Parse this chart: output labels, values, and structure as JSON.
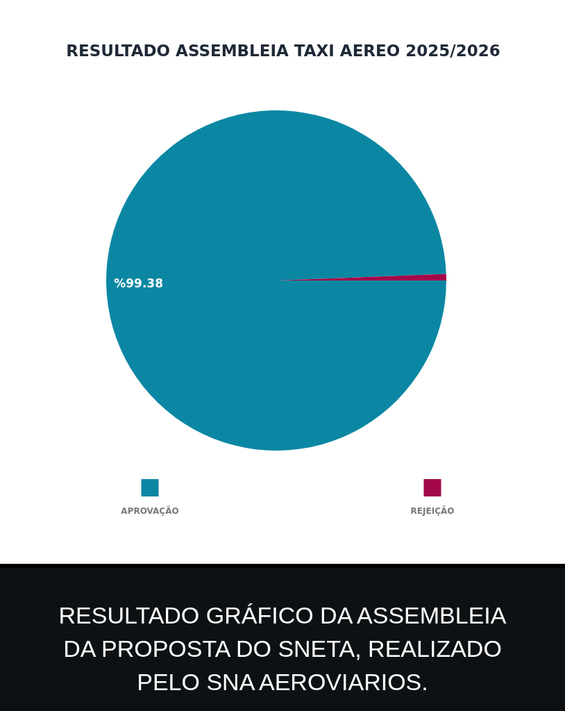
{
  "chart_data": {
    "type": "pie",
    "title": "RESULTADO ASSEMBLEIA TAXI AEREO 2025/2026",
    "categories": [
      "APROVAÇÃO",
      "REJEIÇÃO"
    ],
    "values": [
      99.38,
      0.62
    ],
    "colors": [
      "#0b87a3",
      "#a3084b"
    ],
    "value_labels": [
      "%99.38",
      null
    ],
    "legend": "bottom",
    "annotations": [
      "RESULTADO GRÁFICO DA ASSEMBLEIA DA PROPOSTA DO SNETA, REALIZADO PELO SNA AEROVIARIOS."
    ]
  }
}
